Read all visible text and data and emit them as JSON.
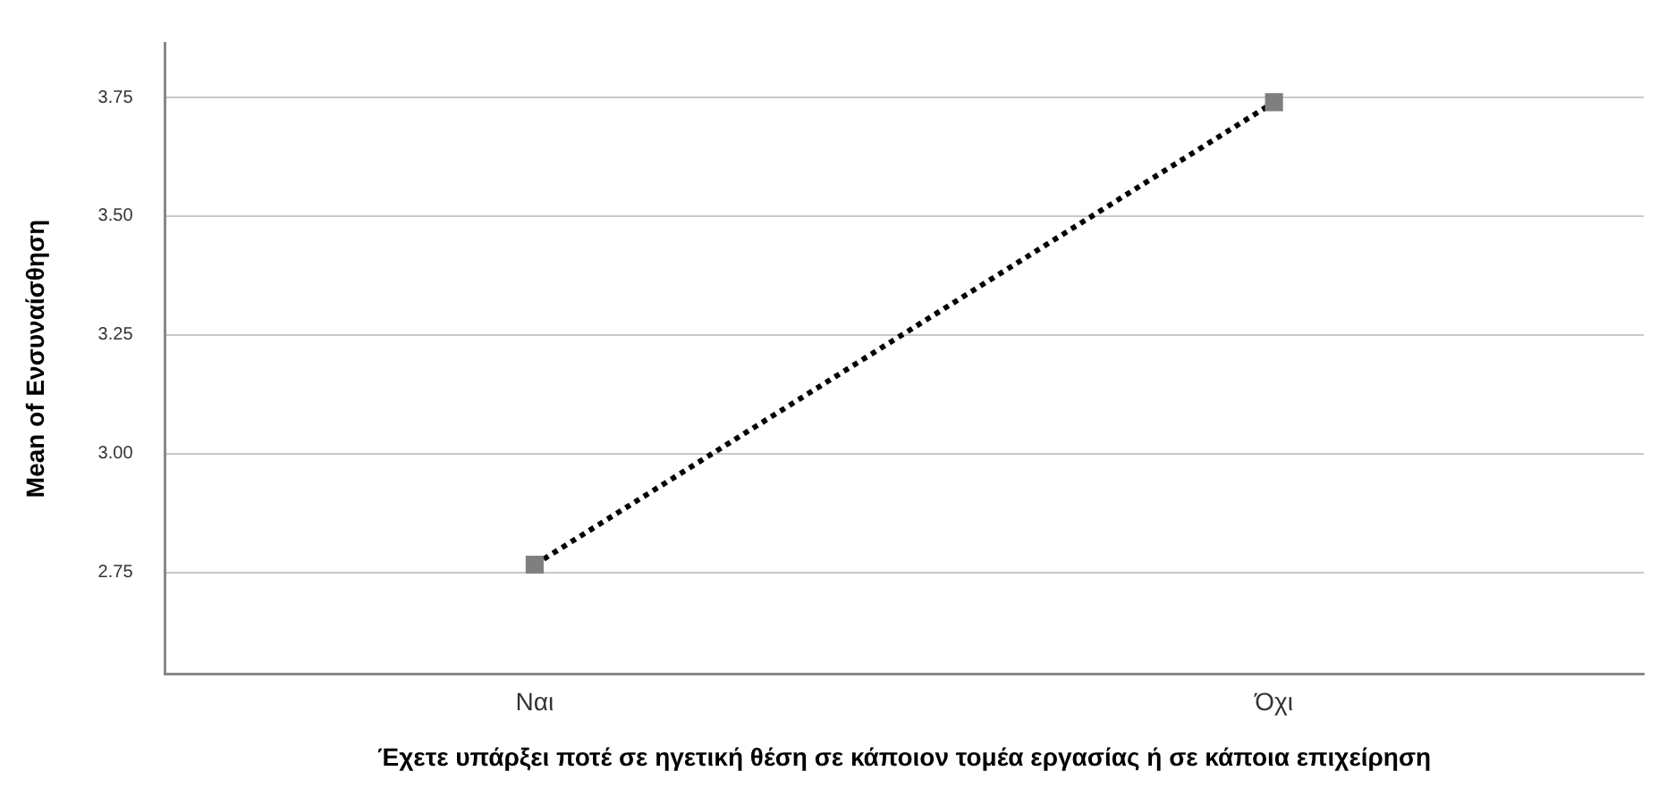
{
  "chart_data": {
    "type": "line",
    "xlabel": "Έχετε υπάρξει ποτέ σε ηγετική θέση σε κάποιον τομέα εργασίας ή σε κάποια επιχείρηση",
    "ylabel": "Mean of Ενσυναίσθηση",
    "categories": [
      "Ναι",
      "Όχι"
    ],
    "series": [
      {
        "color": "#000000",
        "colors": [
          "#7f7f7f",
          "#7f7f7f"
        ],
        "values": [
          2.766,
          3.74
        ]
      }
    ],
    "ylim": [
      2.535,
      3.865
    ],
    "yticks": [
      2.75,
      {
        "value": 3,
        "label": "3.00"
      },
      3.25,
      {
        "value": 3.5,
        "label": "3.50"
      },
      3.75
    ],
    "grid": "y",
    "legend": false,
    "marker": "square",
    "line_style": "dotted"
  }
}
